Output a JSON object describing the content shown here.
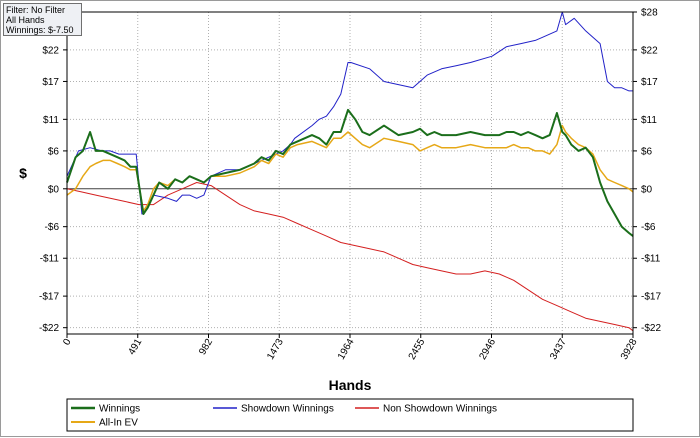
{
  "info_box": {
    "filter": "Filter: No Filter",
    "hands": "All Hands",
    "winnings": "Winnings: $-7.50"
  },
  "colors": {
    "winnings": "#1b6e1b",
    "allin_ev": "#e6a817",
    "showdown": "#2222c8",
    "non_showdown": "#d42020",
    "grid": "#b0b0b0",
    "zero_line": "#404040"
  },
  "chart_data": {
    "type": "line",
    "title": "",
    "xlabel": "Hands",
    "ylabel": "$",
    "xlim": [
      0,
      3928
    ],
    "ylim": [
      -23,
      28
    ],
    "grid": true,
    "legend_position": "bottom",
    "x_ticks": [
      0,
      491,
      982,
      1473,
      1964,
      2455,
      2946,
      3437,
      3928
    ],
    "x_tick_labels": [
      "0",
      "491",
      "982",
      "1473",
      "1964",
      "2455",
      "2946",
      "3437",
      "3928"
    ],
    "y_ticks": [
      28,
      22,
      17,
      11,
      6,
      0,
      -6,
      -11,
      -17,
      -22
    ],
    "y_tick_labels": [
      "$28",
      "$22",
      "$17",
      "$11",
      "$6",
      "$0",
      "-$6",
      "-$11",
      "-$17",
      "-$22"
    ],
    "series": [
      {
        "name": "Winnings",
        "x": [
          0,
          60,
          110,
          160,
          200,
          250,
          300,
          350,
          400,
          440,
          480,
          530,
          560,
          600,
          640,
          700,
          750,
          800,
          850,
          900,
          950,
          1000,
          1100,
          1200,
          1300,
          1350,
          1400,
          1450,
          1500,
          1550,
          1600,
          1700,
          1750,
          1800,
          1850,
          1900,
          1950,
          2000,
          2050,
          2100,
          2200,
          2300,
          2400,
          2450,
          2500,
          2550,
          2600,
          2700,
          2800,
          2900,
          3000,
          3050,
          3100,
          3150,
          3200,
          3250,
          3300,
          3350,
          3400,
          3437,
          3460,
          3500,
          3550,
          3600,
          3650,
          3700,
          3750,
          3800,
          3850,
          3900,
          3928
        ],
        "values": [
          1,
          5,
          6,
          9,
          6,
          6,
          5.5,
          5,
          4.5,
          3.5,
          3.5,
          -4,
          -3,
          -1,
          1,
          0,
          1.5,
          1,
          2,
          1.5,
          1,
          2,
          2.5,
          3,
          4,
          5,
          4.5,
          6,
          5.5,
          7,
          7.5,
          8.5,
          8,
          7,
          9,
          9,
          12.5,
          11,
          9,
          8.5,
          10,
          8.5,
          9,
          9.5,
          8.5,
          9,
          8.5,
          8.5,
          9,
          8.5,
          8.5,
          9,
          9,
          8.5,
          9,
          8.5,
          8,
          8.5,
          12,
          9,
          8.5,
          7,
          6,
          6.5,
          5,
          1,
          -2,
          -4,
          -6,
          -7,
          -7.5
        ]
      },
      {
        "name": "All-In EV",
        "x": [
          0,
          60,
          110,
          160,
          200,
          250,
          300,
          350,
          400,
          440,
          480,
          530,
          560,
          600,
          640,
          700,
          750,
          800,
          850,
          900,
          950,
          1000,
          1100,
          1200,
          1300,
          1350,
          1400,
          1450,
          1500,
          1550,
          1600,
          1700,
          1750,
          1800,
          1850,
          1900,
          1950,
          2000,
          2050,
          2100,
          2200,
          2300,
          2400,
          2450,
          2500,
          2550,
          2600,
          2700,
          2800,
          2900,
          3000,
          3050,
          3100,
          3150,
          3200,
          3250,
          3300,
          3350,
          3400,
          3437,
          3460,
          3500,
          3550,
          3600,
          3650,
          3700,
          3750,
          3800,
          3850,
          3900,
          3928
        ],
        "values": [
          -1,
          0,
          2,
          3.5,
          4,
          4.5,
          4.5,
          4,
          3.5,
          3,
          3,
          -3.5,
          -2.5,
          0,
          1,
          0.5,
          1.5,
          1,
          2,
          1.5,
          1,
          2,
          2,
          2.5,
          3.5,
          4.5,
          4,
          5.5,
          5,
          6.5,
          7,
          7.5,
          7,
          6.5,
          8,
          8,
          9,
          8,
          7,
          6.5,
          8,
          7.5,
          7,
          6,
          6.5,
          7,
          6.5,
          6.5,
          7,
          6.5,
          6.5,
          6.5,
          7,
          6.5,
          6.5,
          6,
          6,
          5.5,
          7,
          10,
          9,
          8,
          7,
          6.5,
          5.5,
          3,
          1.5,
          1,
          0.5,
          0,
          -0.5
        ]
      },
      {
        "name": "Showdown Winnings",
        "x": [
          0,
          80,
          160,
          240,
          300,
          360,
          440,
          480,
          520,
          560,
          600,
          700,
          760,
          800,
          850,
          900,
          950,
          1000,
          1100,
          1200,
          1300,
          1350,
          1400,
          1500,
          1550,
          1580,
          1700,
          1750,
          1800,
          1850,
          1900,
          1950,
          1970,
          2100,
          2200,
          2400,
          2500,
          2600,
          2700,
          2800,
          2950,
          3050,
          3150,
          3250,
          3300,
          3400,
          3437,
          3460,
          3520,
          3600,
          3650,
          3700,
          3750,
          3800,
          3850,
          3900,
          3928
        ],
        "values": [
          2,
          6,
          6.5,
          6,
          6,
          5.5,
          5.5,
          5.5,
          -4,
          -3,
          -1,
          -1.5,
          -2,
          -1,
          -1,
          -1.5,
          -1,
          2,
          3,
          3,
          4,
          4.5,
          5,
          6,
          7,
          8,
          10,
          11,
          11.5,
          13,
          15,
          20,
          20,
          19,
          17,
          16,
          18,
          19,
          19.5,
          20,
          21,
          22.5,
          23,
          23.5,
          24,
          25,
          28,
          26,
          27,
          25,
          24,
          23,
          17,
          16,
          16,
          15.5,
          15.5
        ]
      },
      {
        "name": "Non Showdown Winnings",
        "x": [
          0,
          100,
          200,
          300,
          400,
          500,
          600,
          700,
          800,
          900,
          1000,
          1100,
          1200,
          1300,
          1400,
          1500,
          1600,
          1700,
          1800,
          1900,
          2000,
          2100,
          2200,
          2300,
          2400,
          2500,
          2600,
          2700,
          2800,
          2900,
          3000,
          3100,
          3200,
          3300,
          3400,
          3500,
          3600,
          3700,
          3800,
          3900,
          3928
        ],
        "values": [
          0,
          -0.5,
          -1,
          -1.5,
          -2,
          -2.5,
          -2.5,
          -1,
          0,
          1,
          0.5,
          -1,
          -2.5,
          -3.5,
          -4,
          -4.5,
          -5.5,
          -6.5,
          -7.5,
          -8.5,
          -9,
          -9.5,
          -10,
          -11,
          -12,
          -12.5,
          -13,
          -13.5,
          -13.5,
          -13,
          -13.5,
          -14.5,
          -16,
          -17.5,
          -18.5,
          -19.5,
          -20.5,
          -21,
          -21.5,
          -22,
          -22.5
        ]
      }
    ]
  }
}
